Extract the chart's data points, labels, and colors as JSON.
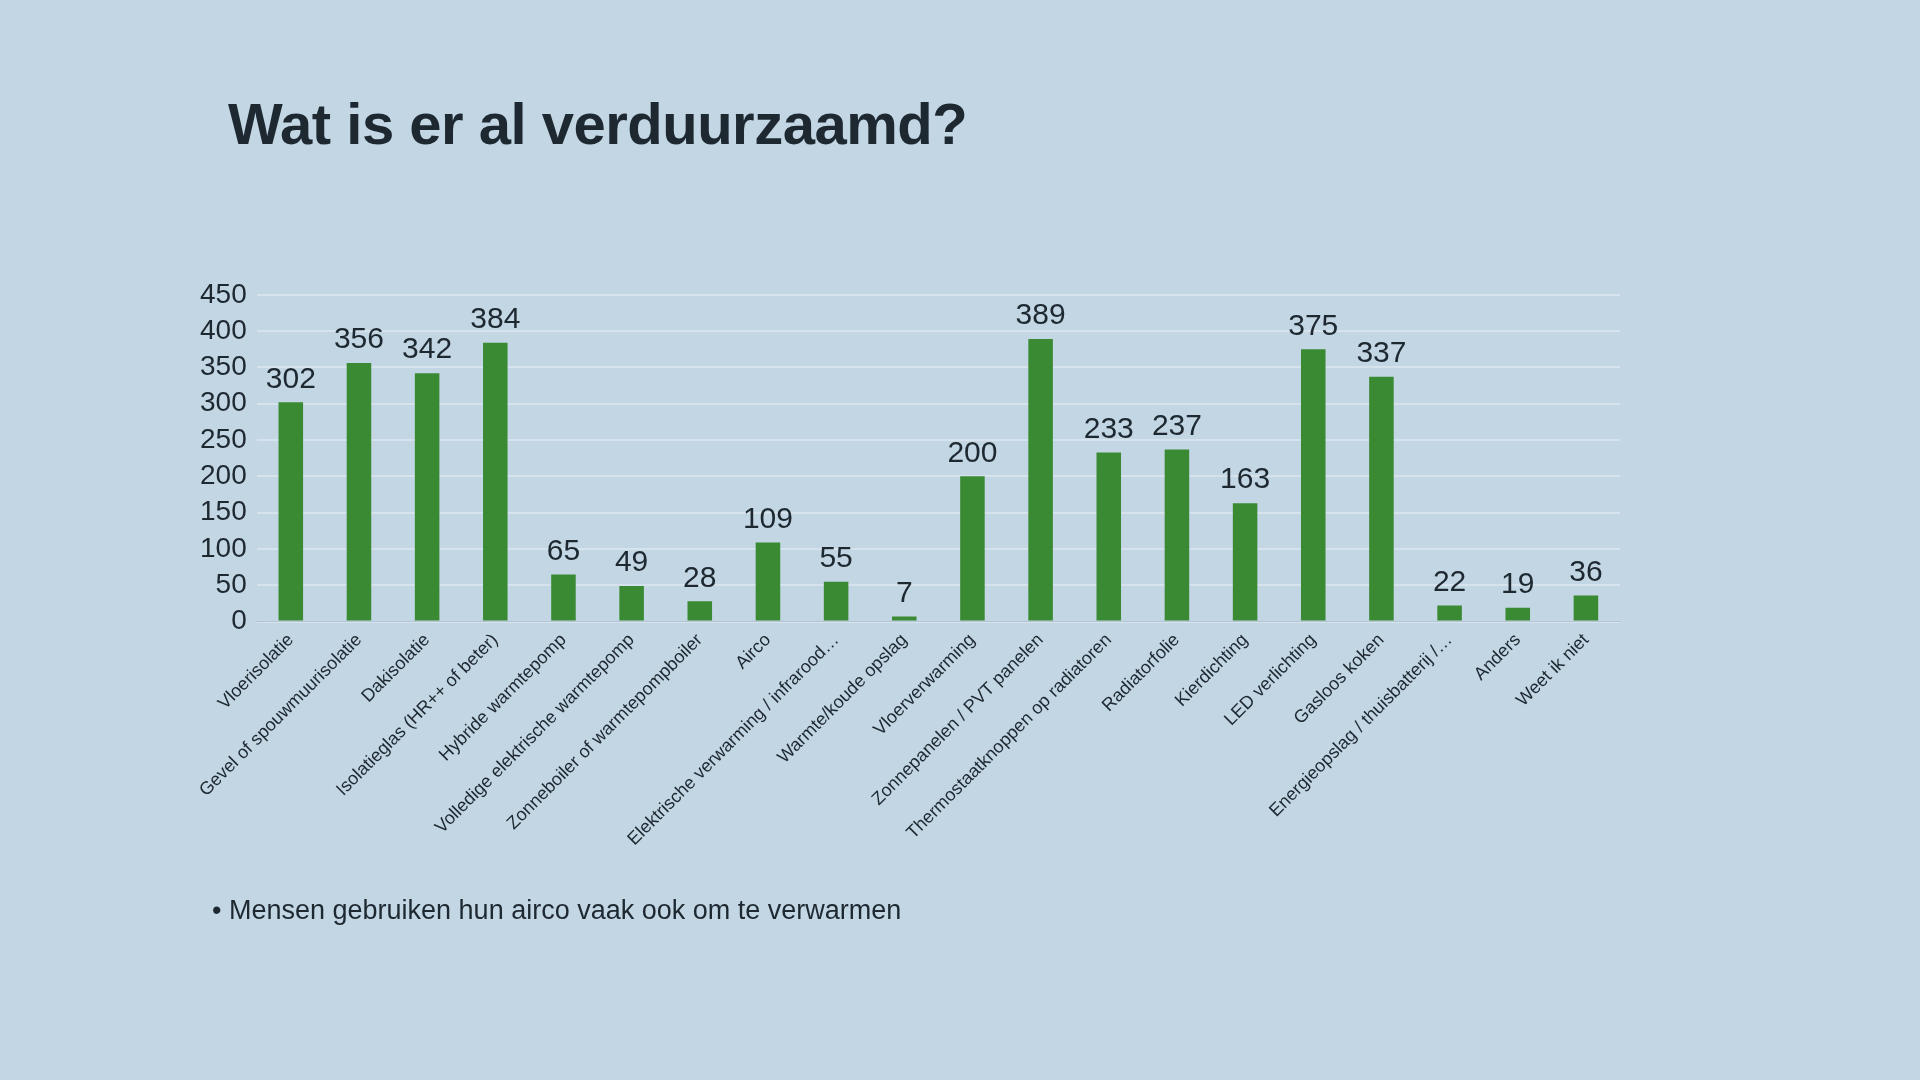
{
  "chart_data": {
    "type": "bar",
    "title": "Wat is er al verduurzaamd?",
    "categories": [
      "Vloerisolatie",
      "Gevel of spouwmuurisolatie",
      "Dakisolatie",
      "Isolatieglas (HR++ of beter)",
      "Hybride warmtepomp",
      "Volledige elektrische warmtepomp",
      "Zonneboiler of warmtepompboiler",
      "Airco",
      "Elektrische verwarming / infrarood…",
      "Warmte/koude opslag",
      "Vloerverwarming",
      "Zonnepanelen / PVT panelen",
      "Thermostaatknoppen op radiatoren",
      "Radiatorfolie",
      "Kierdichting",
      "LED verlichting",
      "Gasloos koken",
      "Energieopslag / thuisbatterij /…",
      "Anders",
      "Weet ik niet"
    ],
    "values": [
      302,
      356,
      342,
      384,
      65,
      49,
      28,
      109,
      55,
      7,
      200,
      389,
      233,
      237,
      163,
      375,
      337,
      22,
      19,
      36
    ],
    "color": "#3a8a34",
    "ylim": [
      0,
      450
    ],
    "yticks": [
      0,
      50,
      100,
      150,
      200,
      250,
      300,
      350,
      400,
      450
    ],
    "grid": "y",
    "data_labels": true,
    "annotations": [
      "• Mensen gebruiken hun airco vaak ook om te verwarmen"
    ]
  }
}
